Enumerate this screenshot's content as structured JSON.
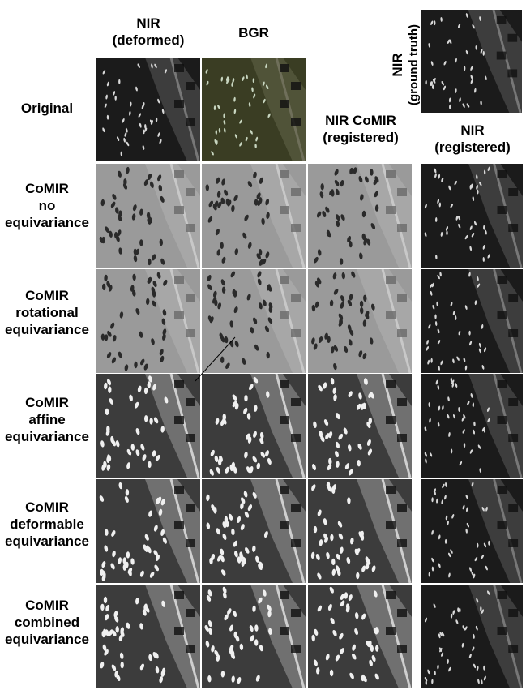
{
  "columns": {
    "nir_deformed": "NIR\n(deformed)",
    "bgr": "BGR",
    "nir_comir_registered": "NIR CoMIR\n(registered)",
    "nir_registered": "NIR\n(registered)",
    "nir_ground_truth": "NIR\n(ground truth)"
  },
  "rows": [
    {
      "key": "original",
      "lines": [
        "Original"
      ]
    },
    {
      "key": "none",
      "lines": [
        "CoMIR",
        "no",
        "equivariance"
      ]
    },
    {
      "key": "rotational",
      "lines": [
        "CoMIR",
        "rotational",
        "equivariance"
      ]
    },
    {
      "key": "affine",
      "lines": [
        "CoMIR",
        "affine",
        "equivariance"
      ]
    },
    {
      "key": "deformable",
      "lines": [
        "CoMIR",
        "deformable",
        "equivariance"
      ]
    },
    {
      "key": "combined",
      "lines": [
        "CoMIR",
        "combined",
        "equivariance"
      ]
    }
  ],
  "tile_styles": {
    "nir_dark": "#1b1b1b",
    "bgr": "#3a3d23",
    "comir_gray": "#9a9a9a",
    "comir_dark": "#3c3c3c"
  }
}
